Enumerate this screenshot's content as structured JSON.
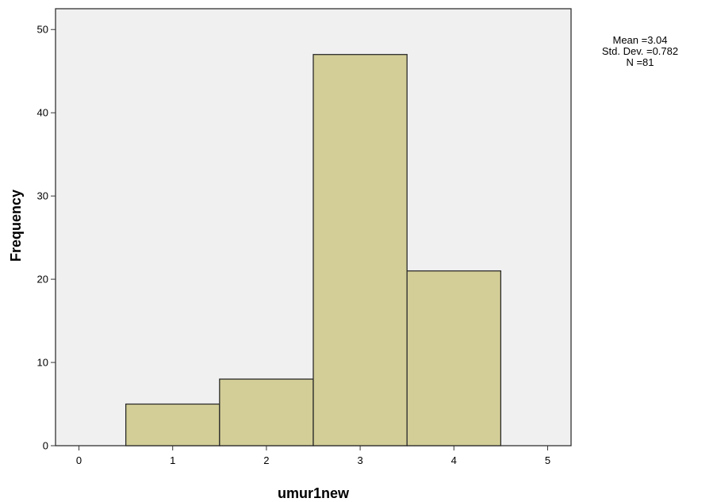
{
  "chart_data": {
    "type": "bar",
    "subtype": "histogram",
    "xlabel": "umur1new",
    "ylabel": "Frequency",
    "x_ticks": [
      "0",
      "1",
      "2",
      "3",
      "4",
      "5"
    ],
    "y_ticks": [
      "0",
      "10",
      "20",
      "30",
      "40",
      "50"
    ],
    "xlim": [
      -0.25,
      5.25
    ],
    "ylim": [
      0,
      52.5
    ],
    "bins": [
      {
        "from": 0.5,
        "to": 1.5,
        "value": 5
      },
      {
        "from": 1.5,
        "to": 2.5,
        "value": 8
      },
      {
        "from": 2.5,
        "to": 3.5,
        "value": 47
      },
      {
        "from": 3.5,
        "to": 4.5,
        "value": 21
      }
    ],
    "stats": {
      "mean": "Mean =3.04",
      "std_dev": "Std. Dev. =0.782",
      "n": "N =81"
    },
    "colors": {
      "bar_fill": "#d3ce97",
      "bar_stroke": "#2b2b2b",
      "plot_background": "#f0f0f0",
      "frame": "#333333"
    },
    "grid": false
  }
}
